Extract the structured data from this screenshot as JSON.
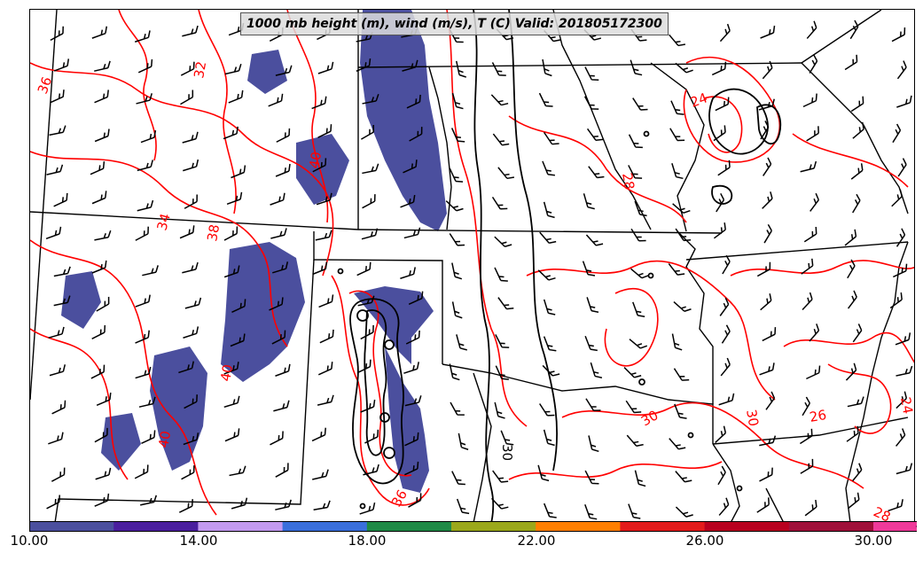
{
  "title": "1000 mb height (m), wind (m/s), T (C) Valid: 201805172300",
  "colors": {
    "temperature_contour": "#ff0000",
    "height_contour": "#000000",
    "state_border": "#000000",
    "wind_barb": "#000000",
    "shading": "#4b4f9e"
  },
  "colorbar": {
    "bins": [
      "#4b4f9e",
      "#4a1e9e",
      "#c39af0",
      "#3a6fdc",
      "#1f8a46",
      "#9ba81b",
      "#ff7f00",
      "#e31b1b",
      "#b8001f",
      "#a0103a",
      "#f03a9a"
    ],
    "extend_color": "#ffa8e0",
    "tick_labels": [
      "10.00",
      "14.00",
      "18.00",
      "22.00",
      "26.00",
      "30.00"
    ]
  },
  "contour_labels": [
    {
      "text": "32"
    },
    {
      "text": "36"
    },
    {
      "text": "40"
    },
    {
      "text": "34"
    },
    {
      "text": "38"
    },
    {
      "text": "40"
    },
    {
      "text": "40"
    },
    {
      "text": "28"
    },
    {
      "text": "24"
    },
    {
      "text": "30"
    },
    {
      "text": "30"
    },
    {
      "text": "26"
    },
    {
      "text": "28"
    },
    {
      "text": "24"
    },
    {
      "text": "36"
    }
  ],
  "height_labels": [
    {
      "text": "30"
    }
  ]
}
